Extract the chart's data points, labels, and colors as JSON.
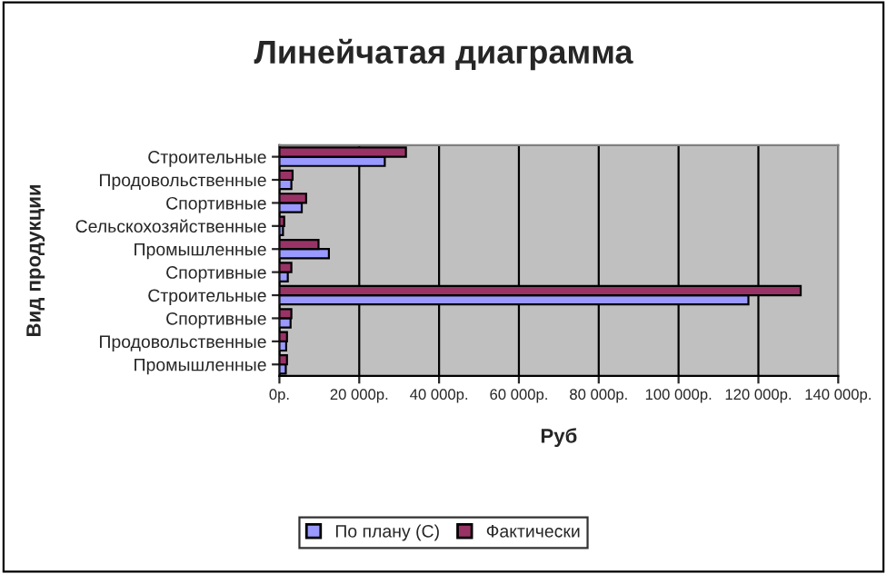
{
  "chart_data": {
    "type": "bar",
    "orientation": "horizontal",
    "title": "Линейчатая диаграмма",
    "xlabel": "Руб",
    "ylabel": "Вид продукции",
    "categories": [
      "Строительные",
      "Продовольственные",
      "Спортивные",
      "Сельскохозяйственные",
      "Промышленные",
      "Спортивные",
      "Строительные",
      "Спортивные",
      "Продовольственные",
      "Промышленные"
    ],
    "series": [
      {
        "name": "По плану (С)",
        "color": "#9999ff",
        "values": [
          26400,
          3000,
          5600,
          900,
          12400,
          2100,
          117500,
          2800,
          1700,
          1600
        ]
      },
      {
        "name": "Фактически",
        "color": "#993366",
        "values": [
          31700,
          3300,
          6700,
          1200,
          9800,
          3000,
          130600,
          3000,
          1900,
          1900
        ]
      }
    ],
    "xlim": [
      0,
      140000
    ],
    "xticks": [
      {
        "value": 0,
        "label": "0р."
      },
      {
        "value": 20000,
        "label": "20 000р."
      },
      {
        "value": 40000,
        "label": "40 000р."
      },
      {
        "value": 60000,
        "label": "60 000р."
      },
      {
        "value": 80000,
        "label": "80 000р."
      },
      {
        "value": 100000,
        "label": "100 000р."
      },
      {
        "value": 120000,
        "label": "120 000р."
      },
      {
        "value": 140000,
        "label": "140 000р."
      }
    ],
    "grid": "x",
    "legend": "bottom"
  }
}
